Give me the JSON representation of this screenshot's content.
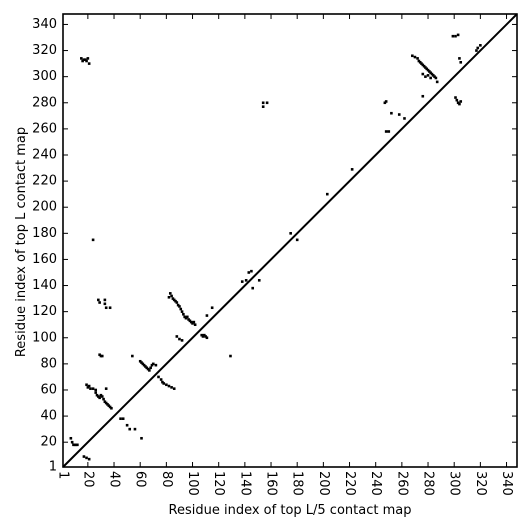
{
  "chart_data": {
    "type": "scatter",
    "title": "",
    "xlabel": "Residue index of top L/5 contact map",
    "ylabel": "Residue index of top L contact map",
    "xlim": [
      1,
      348
    ],
    "ylim": [
      1,
      348
    ],
    "xticks": [
      1,
      20,
      40,
      60,
      80,
      100,
      120,
      140,
      160,
      180,
      200,
      220,
      240,
      260,
      280,
      300,
      320,
      340
    ],
    "yticks": [
      1,
      20,
      40,
      60,
      80,
      100,
      120,
      140,
      160,
      180,
      200,
      220,
      240,
      260,
      280,
      300,
      320,
      340
    ],
    "xtick_rotation": -90,
    "grid": false,
    "legend": "none",
    "diagonal_line": true,
    "series": [
      {
        "region": "below-diagonal",
        "color": "#000000",
        "points": [
          [
            7,
            23
          ],
          [
            8,
            20
          ],
          [
            9,
            18
          ],
          [
            10,
            18
          ],
          [
            11,
            18
          ],
          [
            12,
            18
          ],
          [
            17,
            9
          ],
          [
            19,
            8
          ],
          [
            21,
            7
          ],
          [
            19,
            64
          ],
          [
            20,
            62
          ],
          [
            21,
            63
          ],
          [
            22,
            61
          ],
          [
            24,
            61
          ],
          [
            26,
            60
          ],
          [
            26,
            58
          ],
          [
            27,
            56
          ],
          [
            28,
            55
          ],
          [
            29,
            54
          ],
          [
            30,
            56
          ],
          [
            31,
            55
          ],
          [
            32,
            53
          ],
          [
            33,
            51
          ],
          [
            34,
            50
          ],
          [
            35,
            49
          ],
          [
            36,
            48
          ],
          [
            37,
            47
          ],
          [
            38,
            46
          ],
          [
            34,
            61
          ],
          [
            29,
            87
          ],
          [
            30,
            86
          ],
          [
            31,
            86
          ],
          [
            28,
            129
          ],
          [
            29,
            127
          ],
          [
            33,
            129
          ],
          [
            33,
            126
          ],
          [
            34,
            123
          ],
          [
            37,
            123
          ],
          [
            45,
            38
          ],
          [
            47,
            38
          ],
          [
            50,
            33
          ],
          [
            52,
            30
          ],
          [
            56,
            30
          ],
          [
            61,
            23
          ],
          [
            54,
            86
          ],
          [
            60,
            82
          ],
          [
            61,
            81
          ],
          [
            62,
            80
          ],
          [
            63,
            79
          ],
          [
            64,
            78
          ],
          [
            65,
            77
          ],
          [
            66,
            76
          ],
          [
            67,
            75
          ],
          [
            68,
            77
          ],
          [
            69,
            79
          ],
          [
            70,
            80
          ],
          [
            72,
            79
          ],
          [
            74,
            70
          ],
          [
            76,
            68
          ],
          [
            77,
            66
          ],
          [
            78,
            65
          ],
          [
            80,
            64
          ],
          [
            82,
            63
          ],
          [
            84,
            62
          ],
          [
            86,
            61
          ],
          [
            82,
            131
          ],
          [
            83,
            134
          ],
          [
            84,
            132
          ],
          [
            85,
            130
          ],
          [
            86,
            129
          ],
          [
            87,
            128
          ],
          [
            88,
            127
          ],
          [
            89,
            125
          ],
          [
            90,
            124
          ],
          [
            91,
            122
          ],
          [
            92,
            120
          ],
          [
            93,
            118
          ],
          [
            94,
            116
          ],
          [
            95,
            115
          ],
          [
            96,
            116
          ],
          [
            97,
            114
          ],
          [
            98,
            113
          ],
          [
            99,
            112
          ],
          [
            100,
            111
          ],
          [
            101,
            112
          ],
          [
            102,
            110
          ],
          [
            88,
            101
          ],
          [
            90,
            99
          ],
          [
            92,
            98
          ],
          [
            107,
            102
          ],
          [
            108,
            101
          ],
          [
            109,
            102
          ],
          [
            110,
            101
          ],
          [
            111,
            100
          ],
          [
            111,
            117
          ],
          [
            115,
            123
          ],
          [
            129,
            86
          ],
          [
            138,
            143
          ],
          [
            141,
            144
          ],
          [
            143,
            150
          ],
          [
            145,
            151
          ],
          [
            146,
            138
          ],
          [
            151,
            144
          ],
          [
            175,
            180
          ],
          [
            180,
            175
          ],
          [
            203,
            210
          ],
          [
            222,
            229
          ],
          [
            248,
            258
          ],
          [
            250,
            258
          ],
          [
            252,
            272
          ],
          [
            258,
            271
          ],
          [
            262,
            268
          ]
        ]
      },
      {
        "region": "above-diagonal",
        "color": "#000000",
        "points": [
          [
            15,
            314
          ],
          [
            16,
            312
          ],
          [
            17,
            313
          ],
          [
            18,
            313
          ],
          [
            19,
            312
          ],
          [
            20,
            314
          ],
          [
            21,
            310
          ],
          [
            24,
            175
          ],
          [
            154,
            280
          ],
          [
            154,
            277
          ],
          [
            157,
            280
          ],
          [
            247,
            280
          ],
          [
            248,
            281
          ],
          [
            276,
            285
          ],
          [
            268,
            316
          ],
          [
            270,
            315
          ],
          [
            272,
            314
          ],
          [
            273,
            312
          ],
          [
            274,
            311
          ],
          [
            275,
            310
          ],
          [
            276,
            309
          ],
          [
            277,
            308
          ],
          [
            278,
            307
          ],
          [
            279,
            306
          ],
          [
            280,
            305
          ],
          [
            281,
            304
          ],
          [
            282,
            303
          ],
          [
            283,
            302
          ],
          [
            284,
            301
          ],
          [
            285,
            300
          ],
          [
            286,
            299
          ],
          [
            287,
            296
          ],
          [
            276,
            302
          ],
          [
            278,
            300
          ],
          [
            280,
            301
          ],
          [
            282,
            299
          ],
          [
            299,
            331
          ],
          [
            301,
            331
          ],
          [
            303,
            332
          ],
          [
            304,
            314
          ],
          [
            305,
            311
          ],
          [
            301,
            284
          ],
          [
            302,
            282
          ],
          [
            303,
            280
          ],
          [
            304,
            279
          ],
          [
            305,
            281
          ],
          [
            317,
            320
          ],
          [
            318,
            322
          ],
          [
            320,
            324
          ]
        ]
      }
    ]
  }
}
